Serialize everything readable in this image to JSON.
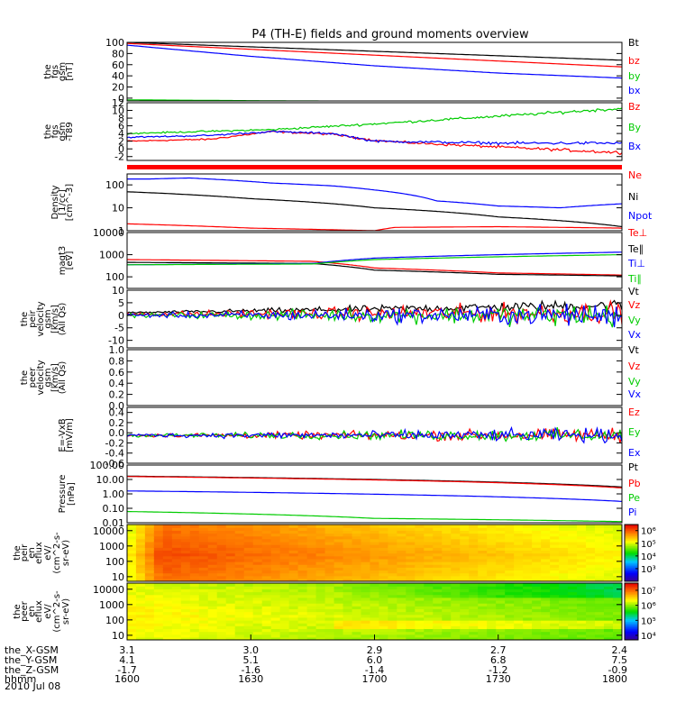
{
  "title": "P4 (TH-E) fields and ground moments overview",
  "date_label": "2010 Jul 08",
  "chart_data": [
    {
      "id": "fgs",
      "type": "line",
      "ylabel": [
        "the",
        "fgs",
        "gsm",
        "[nT]"
      ],
      "ylim": [
        -5,
        100
      ],
      "yticks": [
        0,
        20,
        40,
        60,
        80,
        100
      ],
      "tick_labels": [
        "0",
        "20",
        "40",
        "60",
        "80",
        "100"
      ],
      "series": [
        {
          "name": "Bt",
          "color": "#000000",
          "x": [
            "16:00",
            "18:00"
          ],
          "y": [
            100,
            68
          ]
        },
        {
          "name": "bz",
          "color": "#ff0000",
          "x": [
            "16:00",
            "18:00"
          ],
          "y": [
            98,
            56
          ]
        },
        {
          "name": "by",
          "color": "#00cc00",
          "x": [
            "16:00",
            "16:40",
            "18:00"
          ],
          "y": [
            -3,
            -5,
            -6
          ]
        },
        {
          "name": "bx",
          "color": "#0000ff",
          "x": [
            "16:00",
            "16:30",
            "17:00",
            "17:30",
            "18:00"
          ],
          "y": [
            95,
            75,
            58,
            45,
            36
          ]
        }
      ]
    },
    {
      "id": "fgs_t89",
      "type": "line",
      "ylabel": [
        "the",
        "fgs",
        "gsm",
        "-T89"
      ],
      "ylim": [
        -3,
        12
      ],
      "yticks": [
        -2,
        0,
        2,
        4,
        6,
        8,
        10,
        12
      ],
      "tick_labels": [
        "-2",
        "0",
        "2",
        "4",
        "6",
        "8",
        "10",
        "12"
      ],
      "series": [
        {
          "name": "Bz",
          "color": "#ff0000",
          "x": [
            "16:00",
            "16:20",
            "16:35",
            "16:50",
            "17:00",
            "17:10",
            "17:30",
            "18:00"
          ],
          "y": [
            2,
            2.5,
            4.5,
            3.8,
            2.2,
            1.5,
            0.5,
            -1
          ]
        },
        {
          "name": "By",
          "color": "#00cc00",
          "x": [
            "16:00",
            "16:35",
            "17:00",
            "17:30",
            "18:00"
          ],
          "y": [
            4,
            5,
            6.5,
            8.5,
            10.5
          ]
        },
        {
          "name": "Bx",
          "color": "#0000ff",
          "x": [
            "16:00",
            "16:20",
            "16:35",
            "16:50",
            "17:00",
            "17:30",
            "18:00"
          ],
          "y": [
            3,
            3.5,
            4.5,
            4,
            2,
            1.5,
            1.5
          ]
        }
      ]
    },
    {
      "id": "density",
      "type": "line",
      "yscale": "log",
      "ylabel": [
        "Density",
        "[1/cc]",
        "[cm^-3]"
      ],
      "ylim": [
        1,
        300
      ],
      "yticks": [
        1,
        10,
        100
      ],
      "tick_labels": [
        "1",
        "10",
        "100"
      ],
      "series": [
        {
          "name": "Ne",
          "color": "#ff0000",
          "x": [
            "16:00",
            "16:30",
            "17:00",
            "17:05",
            "17:30",
            "18:00"
          ],
          "y": [
            2,
            1.3,
            1,
            1.4,
            1.5,
            1.3
          ]
        },
        {
          "name": "Ni",
          "color": "#000000",
          "x": [
            "16:00",
            "16:30",
            "17:00",
            "17:30",
            "18:00"
          ],
          "y": [
            50,
            25,
            10,
            4,
            1.5
          ]
        },
        {
          "name": "Npot",
          "color": "#0000ff",
          "x": [
            "16:05",
            "16:15",
            "16:25",
            "16:35",
            "16:50",
            "17:00",
            "17:15",
            "17:30",
            "17:45",
            "18:00"
          ],
          "y": [
            180,
            200,
            160,
            120,
            90,
            60,
            20,
            12,
            10,
            15
          ]
        }
      ]
    },
    {
      "id": "temperature",
      "type": "line",
      "yscale": "log",
      "ylabel": [
        "magt3",
        "[eV]"
      ],
      "ylim": [
        30,
        10000
      ],
      "yticks": [
        100,
        1000,
        10000
      ],
      "tick_labels": [
        "100",
        "1000",
        "10000"
      ],
      "series": [
        {
          "name": "Te⊥",
          "color": "#ff0000",
          "x": [
            "16:00",
            "16:45",
            "17:00",
            "17:30",
            "18:00"
          ],
          "y": [
            600,
            500,
            250,
            150,
            120
          ]
        },
        {
          "name": "Te∥",
          "color": "#000000",
          "x": [
            "16:00",
            "16:45",
            "17:00",
            "17:30",
            "18:00"
          ],
          "y": [
            450,
            400,
            200,
            130,
            110
          ]
        },
        {
          "name": "Ti⊥",
          "color": "#0000ff",
          "x": [
            "16:00",
            "16:45",
            "17:00",
            "17:30",
            "18:00"
          ],
          "y": [
            350,
            400,
            700,
            1000,
            1300
          ]
        },
        {
          "name": "Ti∥",
          "color": "#00cc00",
          "x": [
            "16:00",
            "16:45",
            "17:00",
            "17:30",
            "18:00"
          ],
          "y": [
            350,
            380,
            600,
            800,
            1000
          ]
        }
      ]
    },
    {
      "id": "peir_velocity",
      "type": "line",
      "ylabel": [
        "the",
        "peir",
        "velocity",
        "gsm",
        "[km/s]",
        "(All Qs)"
      ],
      "ylim": [
        -13,
        10
      ],
      "yticks": [
        -10,
        -5,
        0,
        5,
        10
      ],
      "tick_labels": [
        "-10",
        "-5",
        "0",
        "5",
        "10"
      ],
      "series": [
        {
          "name": "Vt",
          "color": "#000000",
          "x": [
            "16:00",
            "18:00"
          ],
          "y": [
            1,
            4
          ]
        },
        {
          "name": "Vz",
          "color": "#ff0000",
          "x": [
            "16:00",
            "18:00"
          ],
          "y": [
            0.5,
            1
          ]
        },
        {
          "name": "Vy",
          "color": "#00cc00",
          "x": [
            "16:00",
            "18:00"
          ],
          "y": [
            0,
            0
          ]
        },
        {
          "name": "Vx",
          "color": "#0000ff",
          "x": [
            "16:00",
            "18:00"
          ],
          "y": [
            0,
            0
          ]
        }
      ]
    },
    {
      "id": "peer_velocity",
      "type": "line",
      "ylabel": [
        "the",
        "peer",
        "velocity",
        "gsm",
        "[km/s]",
        "(All Qs)"
      ],
      "ylim": [
        0,
        1
      ],
      "yticks": [
        0,
        0.2,
        0.4,
        0.6,
        0.8,
        1.0
      ],
      "tick_labels": [
        "0.0",
        "0.2",
        "0.4",
        "0.6",
        "0.8",
        "1.0"
      ],
      "series": [
        {
          "name": "Vt",
          "color": "#000000"
        },
        {
          "name": "Vz",
          "color": "#ff0000"
        },
        {
          "name": "Vy",
          "color": "#00cc00"
        },
        {
          "name": "Vx",
          "color": "#0000ff"
        }
      ]
    },
    {
      "id": "efield",
      "type": "line",
      "ylabel": [
        "E=-VxB",
        "[mV/m]"
      ],
      "ylim": [
        -0.6,
        0.5
      ],
      "yticks": [
        -0.6,
        -0.4,
        -0.2,
        0,
        0.2,
        0.4
      ],
      "tick_labels": [
        "-0.6",
        "-0.4",
        "-0.2",
        "0.0",
        "0.2",
        "0.4"
      ],
      "series": [
        {
          "name": "Ez",
          "color": "#ff0000",
          "x": [
            "16:00",
            "18:00"
          ],
          "y": [
            -0.05,
            -0.05
          ]
        },
        {
          "name": "Ey",
          "color": "#00cc00",
          "x": [
            "16:00",
            "18:00"
          ],
          "y": [
            -0.05,
            -0.05
          ]
        },
        {
          "name": "Ex",
          "color": "#0000ff",
          "x": [
            "16:00",
            "18:00"
          ],
          "y": [
            -0.05,
            -0.05
          ]
        }
      ]
    },
    {
      "id": "pressure",
      "type": "line",
      "yscale": "log",
      "ylabel": [
        "Pressure",
        "[nPa]"
      ],
      "ylim": [
        0.01,
        100
      ],
      "yticks": [
        0.01,
        0.1,
        1,
        10,
        100
      ],
      "tick_labels": [
        "0.01",
        "0.10",
        "1.00",
        "10.00",
        "100.00"
      ],
      "series": [
        {
          "name": "Pt",
          "color": "#000000",
          "x": [
            "16:00",
            "18:00"
          ],
          "y": [
            17,
            3
          ]
        },
        {
          "name": "Pb",
          "color": "#ff0000",
          "x": [
            "16:00",
            "18:00"
          ],
          "y": [
            16,
            2.6
          ]
        },
        {
          "name": "Pe",
          "color": "#00cc00",
          "x": [
            "16:00",
            "17:00",
            "18:00"
          ],
          "y": [
            0.06,
            0.02,
            0.012
          ]
        },
        {
          "name": "Pi",
          "color": "#0000ff",
          "x": [
            "16:00",
            "18:00"
          ],
          "y": [
            1.6,
            0.3
          ]
        }
      ]
    },
    {
      "id": "peir_spec",
      "type": "heatmap",
      "yscale": "log",
      "ylabel": [
        "the",
        "peir",
        "en",
        "eflux",
        "eV/",
        "(cm^2-s-",
        "sr-eV)"
      ],
      "ylim": [
        5,
        25000
      ],
      "yticks": [
        10,
        100,
        1000,
        10000
      ],
      "tick_labels": [
        "10",
        "100",
        "1000",
        "10000"
      ],
      "colorbar": {
        "ticks": [
          1000,
          10000,
          100000,
          1000000
        ],
        "labels": [
          "10³",
          "10⁴",
          "10⁵",
          "10⁶"
        ],
        "range": [
          100,
          3000000
        ]
      }
    },
    {
      "id": "peer_spec",
      "type": "heatmap",
      "yscale": "log",
      "ylabel": [
        "the",
        "peer",
        "en",
        "eflux",
        "eV/",
        "(cm^2-s-",
        "sr-eV)"
      ],
      "ylim": [
        5,
        25000
      ],
      "yticks": [
        10,
        100,
        1000,
        10000
      ],
      "tick_labels": [
        "10",
        "100",
        "1000",
        "10000"
      ],
      "colorbar": {
        "ticks": [
          10000,
          100000,
          1000000,
          10000000
        ],
        "labels": [
          "10⁴",
          "10⁵",
          "10⁶",
          "10⁷"
        ],
        "range": [
          5000,
          30000000
        ]
      }
    }
  ],
  "x_axis": {
    "start": "16:00",
    "end": "18:00",
    "ticks": [
      "16:00",
      "16:30",
      "17:00",
      "17:30",
      "18:00"
    ],
    "rows": [
      {
        "label": "the_X-GSM",
        "values": [
          "3.1",
          "3.0",
          "2.9",
          "2.7",
          "2.4"
        ]
      },
      {
        "label": "the_Y-GSM",
        "values": [
          "4.1",
          "5.1",
          "6.0",
          "6.8",
          "7.5"
        ]
      },
      {
        "label": "the_Z-GSM",
        "values": [
          "-1.7",
          "-1.6",
          "-1.4",
          "-1.2",
          "-0.9"
        ]
      },
      {
        "label": "hhmm",
        "values": [
          "1600",
          "1630",
          "1700",
          "1730",
          "1800"
        ]
      }
    ]
  }
}
